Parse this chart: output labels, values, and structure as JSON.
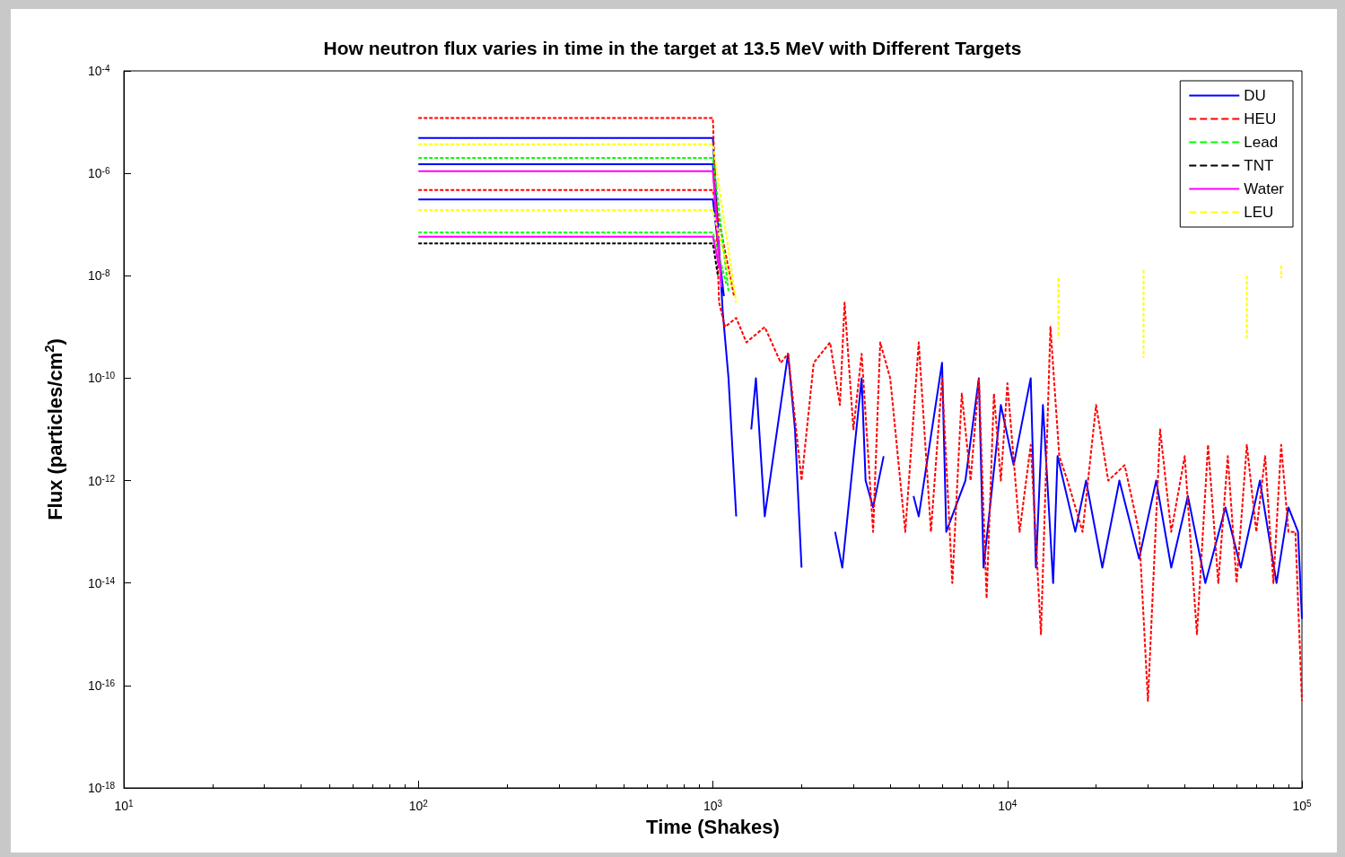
{
  "chart_data": {
    "type": "line",
    "title": "How neutron flux varies in time in the target at 13.5 MeV with Different Targets",
    "xlabel": "Time (Shakes)",
    "ylabel": "Flux (particles/cm$^{2}$)",
    "log": "xy",
    "xlim": [
      10,
      100000
    ],
    "xticks": [
      {
        "value": 10,
        "label": "10$^{1}$"
      },
      {
        "value": 100,
        "label": "10$^{2}$"
      },
      {
        "value": 1000,
        "label": "10$^{3}$"
      },
      {
        "value": 10000,
        "label": "10$^{4}$"
      },
      {
        "value": 100000,
        "label": "10$^{5}$"
      }
    ],
    "ylim": [
      1e-18,
      0.0001
    ],
    "yticks": [
      {
        "value": 1e-18,
        "label": "10$^{-18}$"
      },
      {
        "value": 1e-16,
        "label": "10$^{-16}$"
      },
      {
        "value": 1e-14,
        "label": "10$^{-14}$"
      },
      {
        "value": 1e-12,
        "label": "10$^{-12}$"
      },
      {
        "value": 1e-10,
        "label": "10$^{-10}$"
      },
      {
        "value": 1e-08,
        "label": "10$^{-8}$"
      },
      {
        "value": 1e-06,
        "label": "10$^{-6}$"
      },
      {
        "value": 0.0001,
        "label": "10$^{-4}$"
      }
    ],
    "legend": "top right",
    "marker": "none",
    "series": [
      {
        "name": "DU",
        "color": "#0000ff",
        "line_style": "solid",
        "x": [
          100,
          1000,
          1060,
          null,
          100,
          1000,
          1090,
          null,
          100,
          1000,
          1080,
          1130,
          1200,
          1300,
          1350,
          1400,
          1500,
          1800,
          1900,
          2000,
          2400,
          2600,
          2750,
          3200,
          3300,
          3500,
          3800,
          4500,
          4800,
          5000,
          6000,
          6200,
          7200,
          8000,
          8300,
          9500,
          10500,
          12000,
          12500,
          13200,
          14300,
          14800,
          17000,
          18500,
          21000,
          24000,
          28000,
          32000,
          36000,
          41000,
          47000,
          55000,
          62000,
          72000,
          82000,
          90000,
          97000,
          100000
        ],
        "values": [
          1.5e-06,
          1.5e-06,
          1.2e-08,
          null,
          3.1e-07,
          3.1e-07,
          4e-09,
          null,
          4.9e-06,
          4.9e-06,
          2e-09,
          1e-10,
          2e-13,
          null,
          1e-11,
          1e-10,
          2e-13,
          3e-10,
          1e-11,
          2e-14,
          null,
          1e-13,
          2e-14,
          1e-10,
          1e-12,
          3e-13,
          3e-12,
          null,
          5e-13,
          2e-13,
          2e-10,
          1e-13,
          1e-12,
          1e-10,
          2e-14,
          3e-11,
          2e-12,
          1e-10,
          2e-14,
          3e-11,
          1e-14,
          3e-12,
          1e-13,
          1e-12,
          2e-14,
          1e-12,
          3e-14,
          1e-12,
          2e-14,
          5e-13,
          1e-14,
          3e-13,
          2e-14,
          1e-12,
          1e-14,
          3e-13,
          1e-13,
          2e-15
        ]
      },
      {
        "name": "HEU",
        "color": "#ff0000",
        "line_style": "dashed",
        "x": [
          100,
          1000,
          1180,
          null,
          100,
          1000,
          1050,
          1100,
          1200,
          1300,
          1500,
          1700,
          1800,
          2000,
          2200,
          2500,
          2700,
          2800,
          3000,
          3200,
          3500,
          3700,
          4000,
          4500,
          5000,
          5500,
          6000,
          6500,
          7000,
          7500,
          8000,
          8500,
          9000,
          9500,
          10000,
          11000,
          12000,
          13000,
          14000,
          15000,
          16000,
          18000,
          20000,
          22000,
          25000,
          28000,
          30000,
          33000,
          36000,
          40000,
          44000,
          48000,
          52000,
          56000,
          60000,
          65000,
          70000,
          75000,
          80000,
          85000,
          90000,
          95000,
          100000
        ],
        "values": [
          4.7e-07,
          4.7e-07,
          4e-09,
          null,
          1.2e-05,
          1.2e-05,
          3e-09,
          1e-09,
          1.5e-09,
          5e-10,
          1e-09,
          2e-10,
          3e-10,
          1e-12,
          2e-10,
          5e-10,
          3e-11,
          3e-09,
          1e-11,
          3e-10,
          1e-13,
          5e-10,
          1e-10,
          1e-13,
          5e-10,
          1e-13,
          1e-10,
          1e-14,
          5e-11,
          1e-12,
          1e-10,
          5e-15,
          5e-11,
          1e-12,
          8e-11,
          1e-13,
          5e-12,
          1e-15,
          1e-09,
          3e-12,
          1e-12,
          1e-13,
          3e-11,
          1e-12,
          2e-12,
          1e-13,
          5e-17,
          1e-11,
          1e-13,
          3e-12,
          1e-15,
          5e-12,
          1e-14,
          3e-12,
          1e-14,
          5e-12,
          1e-13,
          3e-12,
          1e-14,
          5e-12,
          1e-13,
          1e-13,
          5e-17
        ]
      },
      {
        "name": "Lead",
        "color": "#00ff00",
        "line_style": "dashed",
        "x": [
          100,
          1000,
          1130,
          null,
          100,
          1000,
          1110
        ],
        "values": [
          2e-06,
          2e-06,
          5e-09,
          null,
          7e-08,
          7e-08,
          7e-09
        ]
      },
      {
        "name": "TNT",
        "color": "#000000",
        "line_style": "dashed",
        "x": [
          100,
          1000,
          1040
        ],
        "values": [
          4.3e-08,
          4.3e-08,
          1e-08
        ]
      },
      {
        "name": "Water",
        "color": "#ff00ff",
        "line_style": "solid",
        "x": [
          100,
          1000,
          1070,
          null,
          100,
          1000,
          1050
        ],
        "values": [
          1.1e-06,
          1.1e-06,
          6e-09,
          null,
          5.8e-08,
          5.8e-08,
          1.5e-08
        ]
      },
      {
        "name": "LEU",
        "color": "#ffff00",
        "line_style": "dashed",
        "x": [
          100,
          1000,
          1160,
          null,
          100,
          1000,
          1200,
          1300,
          14900,
          14900,
          20000,
          29000,
          29000,
          40000,
          65000,
          65000,
          75000,
          85000,
          85000
        ],
        "values": [
          1.9e-07,
          1.9e-07,
          6e-09,
          null,
          3.7e-06,
          3.7e-06,
          3e-09,
          null,
          9e-09,
          6e-10,
          null,
          1.3e-08,
          2.5e-10,
          null,
          1e-08,
          6e-10,
          null,
          1.6e-08,
          9e-09
        ]
      }
    ]
  }
}
